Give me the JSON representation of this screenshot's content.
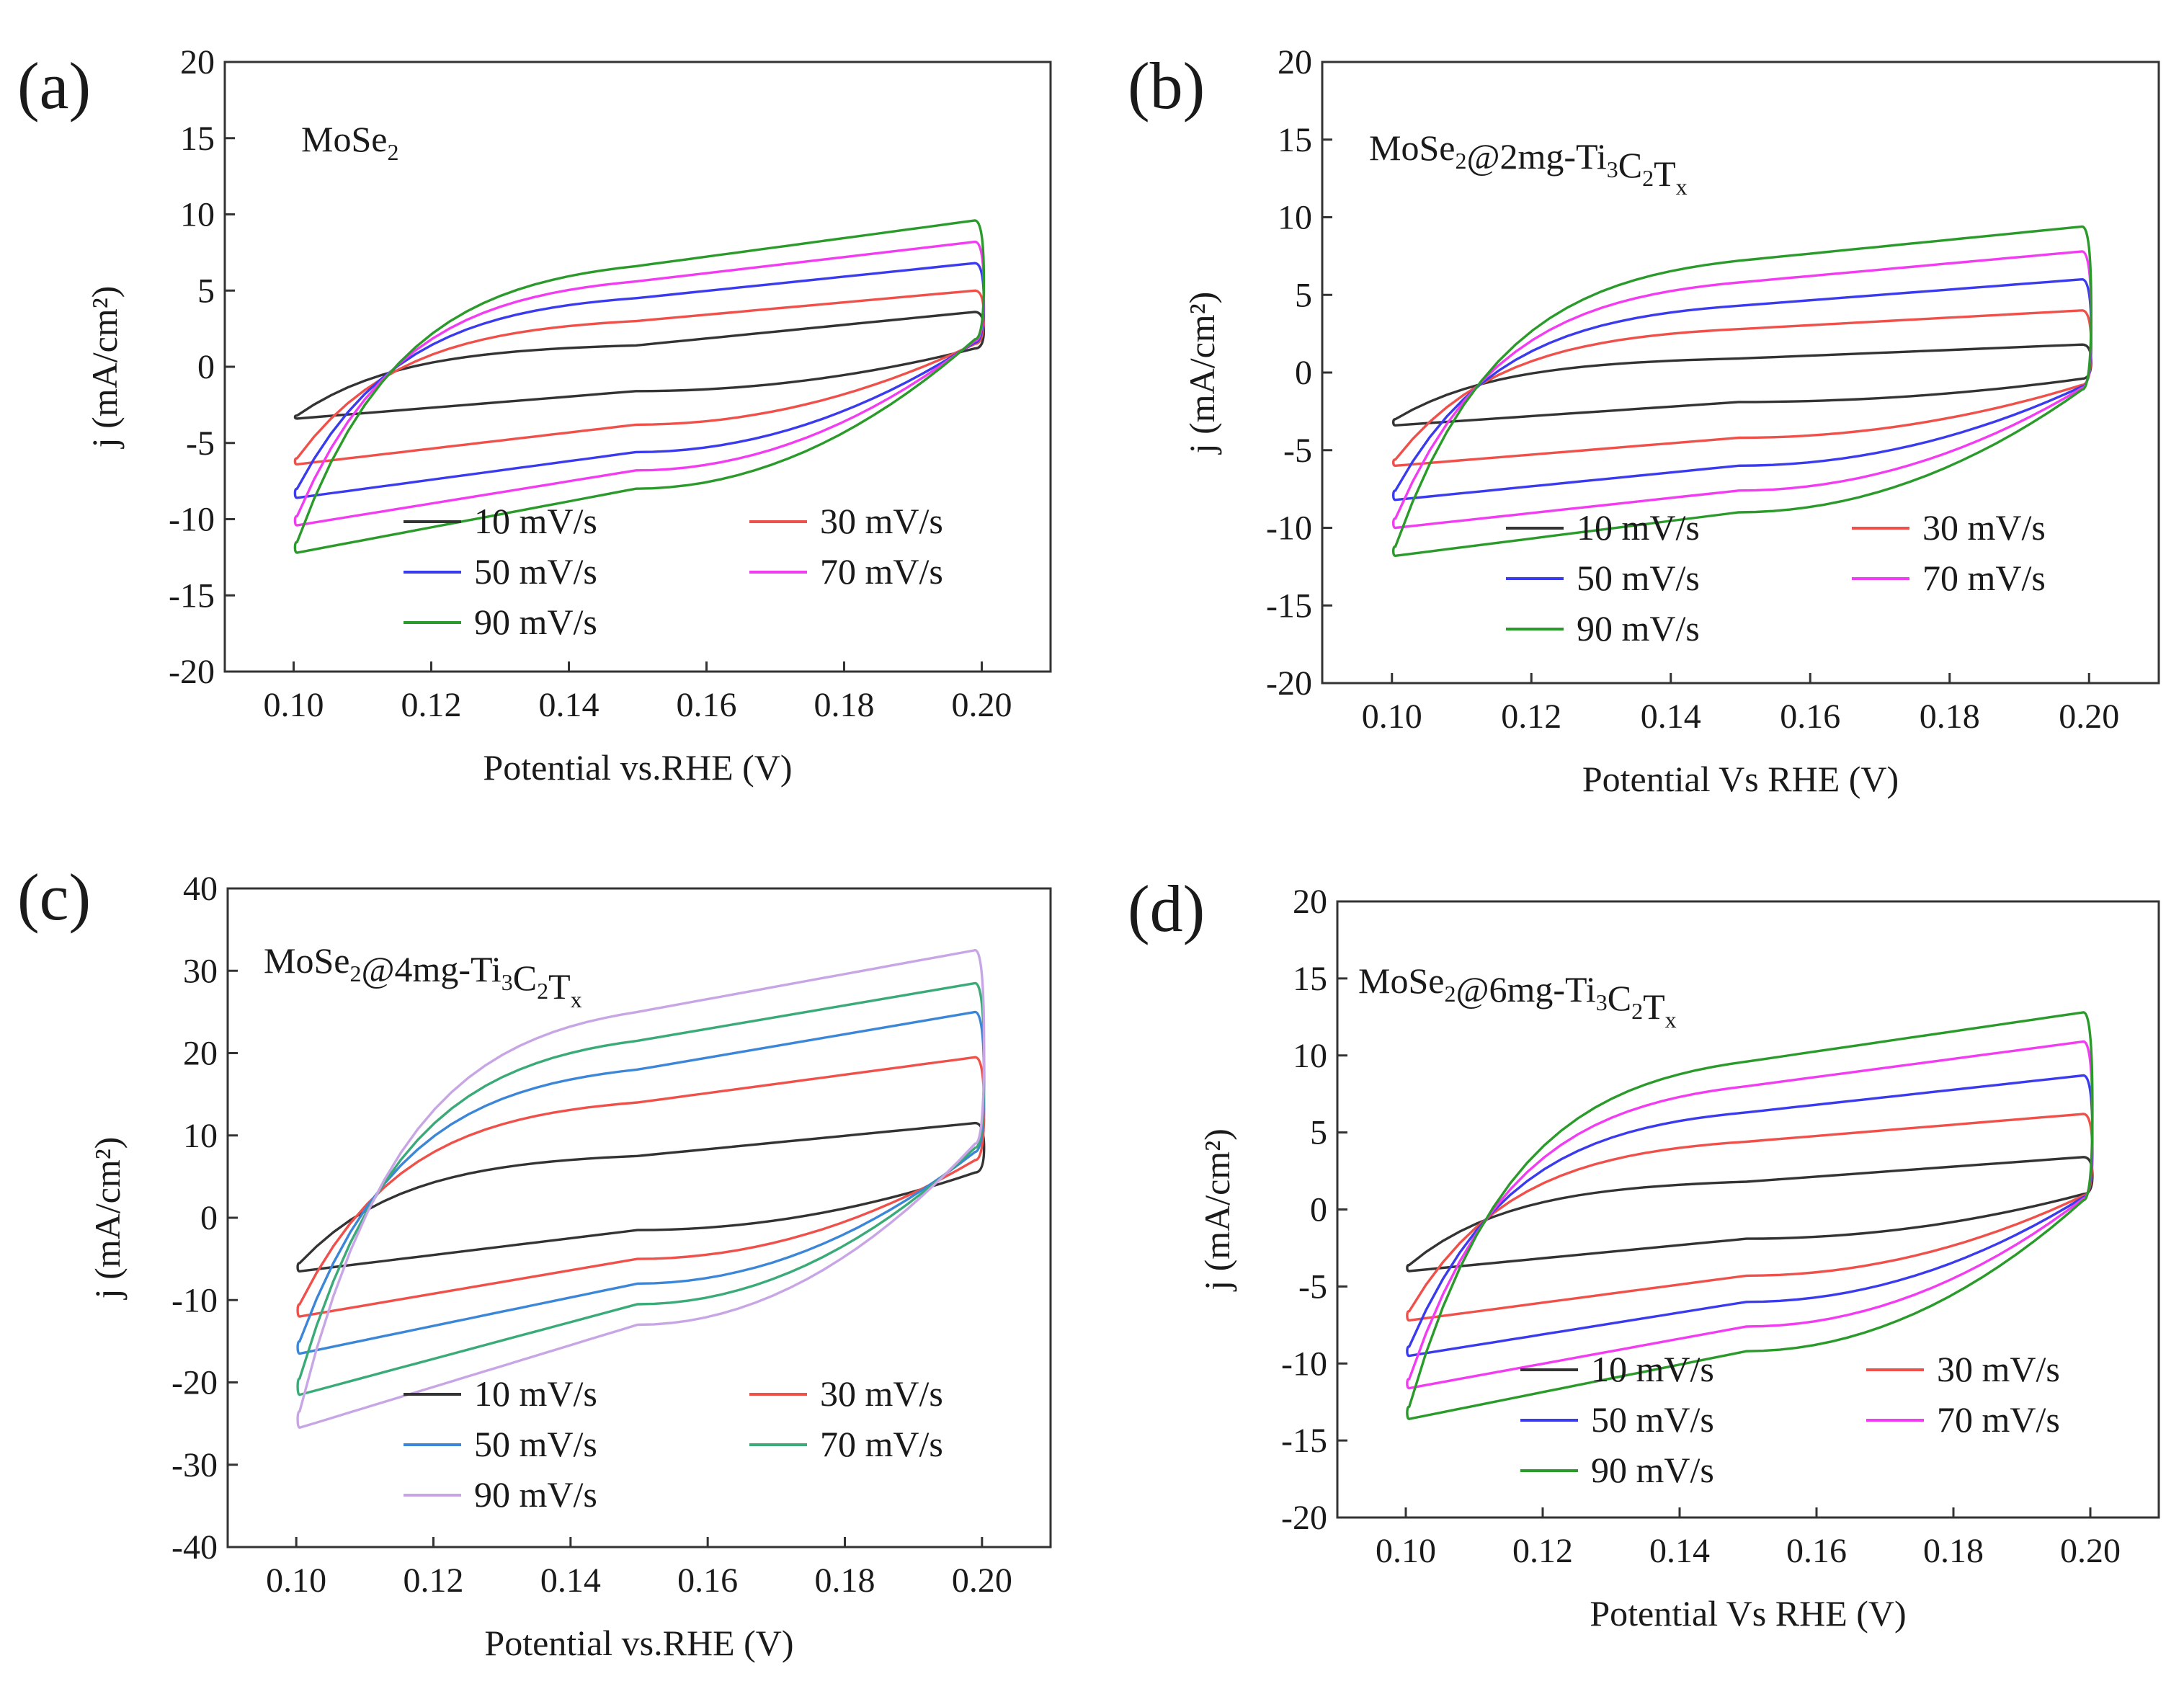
{
  "figure": {
    "colors": {
      "10 mV/s": "#333333",
      "30 mV/s": "#f0504a",
      "50 mV/s_bright": "#3a3aee",
      "70 mV/s_magenta": "#f23cf2",
      "90 mV/s_green": "#2a9a2a",
      "50 mV/s_light": "#3c86d8",
      "70 mV/s_teal": "#3aaa78",
      "90 mV/s_lilac": "#c8a6e6"
    }
  },
  "chart_data": [
    {
      "id": "a",
      "panel_label": "(a)",
      "type": "line",
      "sample_name": "MoSe",
      "sample_subscripts": [
        "2"
      ],
      "title": "",
      "xlabel": "Potential vs.RHE (V)",
      "ylabel": "j (mA/cm²)",
      "xlim": [
        0.09,
        0.21
      ],
      "ylim": [
        -20,
        20
      ],
      "xticks": [
        "0.10",
        "0.12",
        "0.14",
        "0.16",
        "0.18",
        "0.20"
      ],
      "yticks": [
        "-20",
        "-15",
        "-10",
        "-5",
        "0",
        "5",
        "10",
        "15",
        "20"
      ],
      "legend": "bottom-right",
      "series": [
        {
          "name": "10 mV/s",
          "color": "#333333",
          "j_upper_start": -3.2,
          "j_upper_mid": 1.4,
          "j_upper_end": 3.6,
          "j_lower_start": -3.4,
          "j_lower_mid": -1.6,
          "j_lower_end": 1.2
        },
        {
          "name": "30 mV/s",
          "color": "#f0504a",
          "j_upper_start": -6.0,
          "j_upper_mid": 3.0,
          "j_upper_end": 5.0,
          "j_lower_start": -6.4,
          "j_lower_mid": -3.8,
          "j_lower_end": 1.5
        },
        {
          "name": "50 mV/s",
          "color": "#3a3aee",
          "j_upper_start": -8.0,
          "j_upper_mid": 4.5,
          "j_upper_end": 6.8,
          "j_lower_start": -8.6,
          "j_lower_mid": -5.6,
          "j_lower_end": 1.6
        },
        {
          "name": "70 mV/s",
          "color": "#f23cf2",
          "j_upper_start": -9.8,
          "j_upper_mid": 5.6,
          "j_upper_end": 8.2,
          "j_lower_start": -10.4,
          "j_lower_mid": -6.8,
          "j_lower_end": 1.7
        },
        {
          "name": "90 mV/s",
          "color": "#2a9a2a",
          "j_upper_start": -11.5,
          "j_upper_mid": 6.6,
          "j_upper_end": 9.6,
          "j_lower_start": -12.2,
          "j_lower_mid": -8.0,
          "j_lower_end": 1.8
        }
      ]
    },
    {
      "id": "b",
      "panel_label": "(b)",
      "type": "line",
      "sample_name": "MoSe@2mg-TiCT",
      "sample_subscripts": [
        "2",
        "3",
        "2",
        "x"
      ],
      "title": "",
      "xlabel": "Potential Vs RHE (V)",
      "ylabel": "j (mA/cm²)",
      "xlim": [
        0.09,
        0.21
      ],
      "ylim": [
        -20,
        20
      ],
      "xticks": [
        "0.10",
        "0.12",
        "0.14",
        "0.16",
        "0.18",
        "0.20"
      ],
      "yticks": [
        "-20",
        "-15",
        "-10",
        "-5",
        "0",
        "5",
        "10",
        "15",
        "20"
      ],
      "legend": "bottom-right",
      "series": [
        {
          "name": "10 mV/s",
          "color": "#333333",
          "j_upper_start": -3.0,
          "j_upper_mid": 0.9,
          "j_upper_end": 1.8,
          "j_lower_start": -3.4,
          "j_lower_mid": -1.9,
          "j_lower_end": -0.4
        },
        {
          "name": "30 mV/s",
          "color": "#f0504a",
          "j_upper_start": -5.6,
          "j_upper_mid": 2.8,
          "j_upper_end": 4.0,
          "j_lower_start": -6.0,
          "j_lower_mid": -4.2,
          "j_lower_end": -0.8
        },
        {
          "name": "50 mV/s",
          "color": "#3a3aee",
          "j_upper_start": -7.6,
          "j_upper_mid": 4.3,
          "j_upper_end": 6.0,
          "j_lower_start": -8.2,
          "j_lower_mid": -6.0,
          "j_lower_end": -0.9
        },
        {
          "name": "70 mV/s",
          "color": "#f23cf2",
          "j_upper_start": -9.4,
          "j_upper_mid": 5.8,
          "j_upper_end": 7.8,
          "j_lower_start": -10.0,
          "j_lower_mid": -7.6,
          "j_lower_end": -1.0
        },
        {
          "name": "90 mV/s",
          "color": "#2a9a2a",
          "j_upper_start": -11.2,
          "j_upper_mid": 7.2,
          "j_upper_end": 9.4,
          "j_lower_start": -11.8,
          "j_lower_mid": -9.0,
          "j_lower_end": -1.1
        }
      ]
    },
    {
      "id": "c",
      "panel_label": "(c)",
      "type": "line",
      "sample_name": "MoSe@4mg-TiCT",
      "sample_subscripts": [
        "2",
        "3",
        "2",
        "x"
      ],
      "title": "",
      "xlabel": "Potential vs.RHE (V)",
      "ylabel": "j (mA/cm²)",
      "xlim": [
        0.09,
        0.21
      ],
      "ylim": [
        -40,
        40
      ],
      "xticks": [
        "0.10",
        "0.12",
        "0.14",
        "0.16",
        "0.18",
        "0.20"
      ],
      "yticks": [
        "-40",
        "-30",
        "-20",
        "-10",
        "0",
        "10",
        "20",
        "30",
        "40"
      ],
      "legend": "bottom-right",
      "series": [
        {
          "name": "10 mV/s",
          "color": "#333333",
          "j_upper_start": -5.5,
          "j_upper_mid": 7.5,
          "j_upper_end": 11.5,
          "j_lower_start": -6.5,
          "j_lower_mid": -1.5,
          "j_lower_end": 5.5
        },
        {
          "name": "30 mV/s",
          "color": "#f0504a",
          "j_upper_start": -10.5,
          "j_upper_mid": 14.0,
          "j_upper_end": 19.5,
          "j_lower_start": -12.0,
          "j_lower_mid": -5.0,
          "j_lower_end": 7.0
        },
        {
          "name": "50 mV/s",
          "color": "#3c86d8",
          "j_upper_start": -15.0,
          "j_upper_mid": 18.0,
          "j_upper_end": 25.0,
          "j_lower_start": -16.5,
          "j_lower_mid": -8.0,
          "j_lower_end": 8.0
        },
        {
          "name": "70 mV/s",
          "color": "#3aaa78",
          "j_upper_start": -19.5,
          "j_upper_mid": 21.5,
          "j_upper_end": 28.5,
          "j_lower_start": -21.5,
          "j_lower_mid": -10.5,
          "j_lower_end": 8.5
        },
        {
          "name": "90 mV/s",
          "color": "#c8a6e6",
          "j_upper_start": -23.5,
          "j_upper_mid": 25.0,
          "j_upper_end": 32.5,
          "j_lower_start": -25.5,
          "j_lower_mid": -13.0,
          "j_lower_end": 9.0
        }
      ]
    },
    {
      "id": "d",
      "panel_label": "(d)",
      "type": "line",
      "sample_name": "MoSe@6mg-TiCT",
      "sample_subscripts": [
        "2",
        "3",
        "2",
        "x"
      ],
      "title": "",
      "xlabel": "Potential Vs RHE (V)",
      "ylabel": "j (mA/cm²)",
      "xlim": [
        0.09,
        0.21
      ],
      "ylim": [
        -20,
        20
      ],
      "xticks": [
        "0.10",
        "0.12",
        "0.14",
        "0.16",
        "0.18",
        "0.20"
      ],
      "yticks": [
        "-20",
        "-15",
        "-10",
        "-5",
        "0",
        "5",
        "10",
        "15",
        "20"
      ],
      "legend": "bottom-right",
      "series": [
        {
          "name": "10 mV/s",
          "color": "#333333",
          "j_upper_start": -3.6,
          "j_upper_mid": 1.8,
          "j_upper_end": 3.4,
          "j_lower_start": -4.0,
          "j_lower_mid": -1.9,
          "j_lower_end": 1.0
        },
        {
          "name": "30 mV/s",
          "color": "#f0504a",
          "j_upper_start": -6.6,
          "j_upper_mid": 4.4,
          "j_upper_end": 6.2,
          "j_lower_start": -7.2,
          "j_lower_mid": -4.3,
          "j_lower_end": 0.9
        },
        {
          "name": "50 mV/s",
          "color": "#3a3aee",
          "j_upper_start": -8.9,
          "j_upper_mid": 6.3,
          "j_upper_end": 8.7,
          "j_lower_start": -9.5,
          "j_lower_mid": -6.0,
          "j_lower_end": 0.8
        },
        {
          "name": "70 mV/s",
          "color": "#f23cf2",
          "j_upper_start": -11.0,
          "j_upper_mid": 8.0,
          "j_upper_end": 10.9,
          "j_lower_start": -11.6,
          "j_lower_mid": -7.6,
          "j_lower_end": 0.7
        },
        {
          "name": "90 mV/s",
          "color": "#2a9a2a",
          "j_upper_start": -12.8,
          "j_upper_mid": 9.6,
          "j_upper_end": 12.8,
          "j_lower_start": -13.6,
          "j_lower_mid": -9.2,
          "j_lower_end": 0.6
        }
      ]
    }
  ]
}
